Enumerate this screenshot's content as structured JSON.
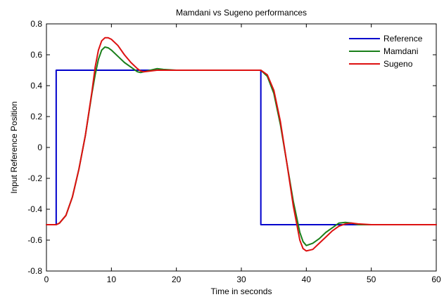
{
  "chart_data": {
    "type": "line",
    "title": "Mamdani vs Sugeno performances",
    "xlabel": "Time in seconds",
    "ylabel": "Input Reference Position",
    "xlim": [
      0,
      60
    ],
    "ylim": [
      -0.8,
      0.8
    ],
    "xticks": [
      0,
      10,
      20,
      30,
      40,
      50,
      60
    ],
    "yticks": [
      -0.8,
      -0.6,
      -0.4,
      -0.2,
      0,
      0.2,
      0.4,
      0.6,
      0.8
    ],
    "xtick_labels": [
      "0",
      "10",
      "20",
      "30",
      "40",
      "50",
      "60"
    ],
    "ytick_labels": [
      "-0.8",
      "-0.6",
      "-0.4",
      "-0.2",
      "0",
      "0.2",
      "0.4",
      "0.6",
      "0.8"
    ],
    "grid": false,
    "legend_position": "top-right",
    "series": [
      {
        "name": "Reference",
        "color": "#0000cc",
        "x": [
          0,
          1.5,
          1.5,
          33,
          33,
          60
        ],
        "y": [
          -0.5,
          -0.5,
          0.5,
          0.5,
          -0.5,
          -0.5
        ]
      },
      {
        "name": "Mamdani",
        "color": "#1a7f1a",
        "x": [
          0,
          1.5,
          2,
          3,
          4,
          5,
          6,
          7,
          7.5,
          8,
          8.5,
          9,
          9.5,
          10,
          11,
          12,
          13,
          14,
          14.5,
          15,
          16,
          17,
          18,
          20,
          22,
          25,
          28,
          31,
          33,
          34,
          35,
          36,
          37,
          38,
          39,
          39.5,
          40,
          41,
          42,
          43,
          44,
          45,
          46,
          47,
          48,
          50,
          52,
          55,
          58,
          60
        ],
        "y": [
          -0.5,
          -0.5,
          -0.49,
          -0.44,
          -0.32,
          -0.14,
          0.08,
          0.35,
          0.47,
          0.57,
          0.63,
          0.65,
          0.645,
          0.63,
          0.59,
          0.55,
          0.52,
          0.49,
          0.485,
          0.49,
          0.5,
          0.51,
          0.505,
          0.5,
          0.5,
          0.5,
          0.5,
          0.5,
          0.5,
          0.46,
          0.35,
          0.15,
          -0.1,
          -0.35,
          -0.55,
          -0.61,
          -0.635,
          -0.62,
          -0.59,
          -0.55,
          -0.52,
          -0.49,
          -0.485,
          -0.49,
          -0.5,
          -0.5,
          -0.5,
          -0.5,
          -0.5,
          -0.5
        ]
      },
      {
        "name": "Sugeno",
        "color": "#dd1111",
        "x": [
          0,
          1.5,
          2,
          3,
          4,
          5,
          6,
          7,
          7.5,
          8,
          8.5,
          9,
          9.5,
          10,
          11,
          12,
          13,
          14,
          14.5,
          15,
          16,
          17,
          18,
          20,
          22,
          25,
          28,
          31,
          33,
          34,
          35,
          36,
          37,
          38,
          39,
          39.5,
          40,
          41,
          42,
          43,
          44,
          45,
          46,
          47,
          48,
          50,
          52,
          55,
          58,
          60
        ],
        "y": [
          -0.5,
          -0.5,
          -0.49,
          -0.44,
          -0.32,
          -0.14,
          0.08,
          0.36,
          0.52,
          0.63,
          0.69,
          0.71,
          0.71,
          0.7,
          0.66,
          0.6,
          0.55,
          0.51,
          0.495,
          0.49,
          0.495,
          0.5,
          0.5,
          0.5,
          0.5,
          0.5,
          0.5,
          0.5,
          0.5,
          0.47,
          0.37,
          0.17,
          -0.1,
          -0.38,
          -0.6,
          -0.655,
          -0.67,
          -0.66,
          -0.62,
          -0.58,
          -0.54,
          -0.51,
          -0.495,
          -0.49,
          -0.495,
          -0.5,
          -0.5,
          -0.5,
          -0.5,
          -0.5
        ]
      }
    ]
  }
}
